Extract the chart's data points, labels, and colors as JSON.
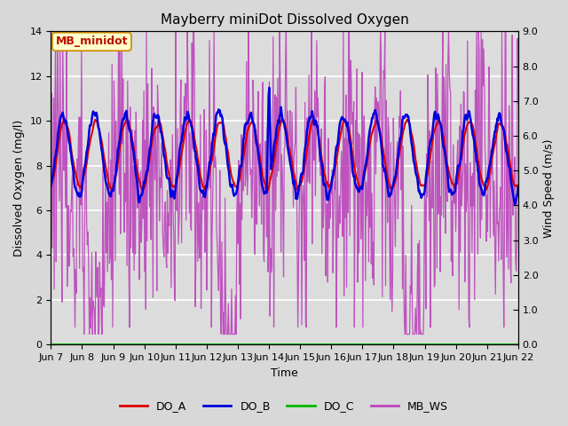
{
  "title": "Mayberry miniDot Dissolved Oxygen",
  "xlabel": "Time",
  "ylabel_left": "Dissolved Oxygen (mg/l)",
  "ylabel_right": "Wind Speed (m/s)",
  "ylim_left": [
    0,
    14
  ],
  "ylim_right": [
    0.0,
    9.0
  ],
  "yticks_left": [
    0,
    2,
    4,
    6,
    8,
    10,
    12,
    14
  ],
  "yticks_right_vals": [
    0.0,
    1.0,
    2.0,
    3.0,
    4.0,
    5.0,
    6.0,
    7.0,
    8.0,
    9.0
  ],
  "yticks_right_labels": [
    "0.0",
    "1.0",
    "2.0",
    "3.0",
    "4.0",
    "5.0",
    "6.0",
    "7.0",
    "8.0",
    "9.0"
  ],
  "xtick_labels": [
    "Jun 7",
    "Jun 8",
    "Jun 9",
    "Jun 10",
    "Jun 11",
    "Jun 12",
    "Jun 13",
    "Jun 14",
    "Jun 15",
    "Jun 16",
    "Jun 17",
    "Jun 18",
    "Jun 19",
    "Jun 20",
    "Jun 21",
    "Jun 22"
  ],
  "annotation_text": "MB_minidot",
  "bg_color": "#d8d8d8",
  "plot_bg_color": "#e8e8e8",
  "inner_bg_color": "#dcdcdc",
  "grid_color": "#ffffff",
  "do_a_color": "#dd0000",
  "do_b_color": "#0000dd",
  "do_c_color": "#00bb00",
  "mb_ws_color": "#bb44bb",
  "title_fontsize": 11,
  "axis_fontsize": 9,
  "tick_fontsize": 8,
  "annot_fontsize": 9
}
